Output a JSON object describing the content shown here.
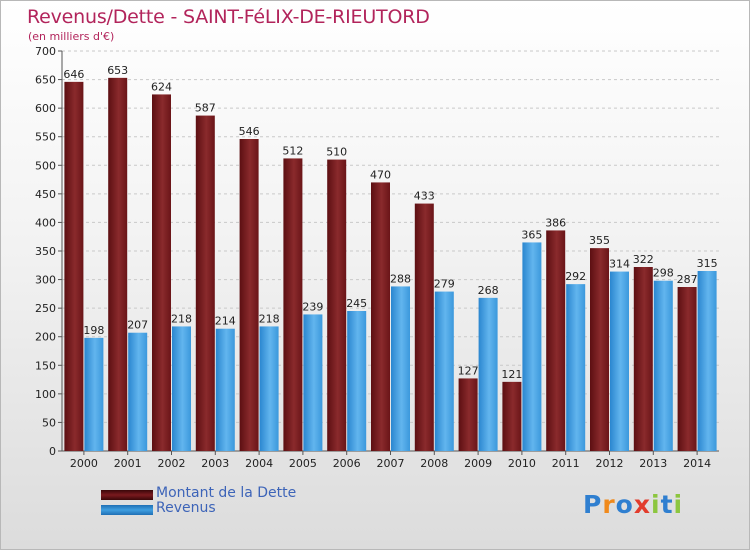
{
  "chart_data": {
    "type": "bar",
    "title": "Revenus/Dette - SAINT-FéLIX-DE-RIEUTORD",
    "subtitle": "(en milliers d'€)",
    "categories": [
      "2000",
      "2001",
      "2002",
      "2003",
      "2004",
      "2005",
      "2006",
      "2007",
      "2008",
      "2009",
      "2010",
      "2011",
      "2012",
      "2013",
      "2014"
    ],
    "series": [
      {
        "name": "Montant de la Dette",
        "color": "#7a1a1e",
        "values": [
          646,
          653,
          624,
          587,
          546,
          512,
          510,
          470,
          433,
          127,
          121,
          386,
          355,
          322,
          287
        ]
      },
      {
        "name": "Revenus",
        "color": "#3f9fe0",
        "values": [
          198,
          207,
          218,
          214,
          218,
          239,
          245,
          288,
          279,
          268,
          365,
          292,
          314,
          298,
          315
        ]
      }
    ],
    "ylim": [
      0,
      700
    ],
    "yticks": [
      0,
      50,
      100,
      150,
      200,
      250,
      300,
      350,
      400,
      450,
      500,
      550,
      600,
      650,
      700
    ],
    "grid": true,
    "legend_position": "bottom-left"
  },
  "logo": {
    "letters": [
      "P",
      "r",
      "o",
      "x",
      "i",
      "t",
      "i"
    ],
    "colors": [
      "#2f7fd0",
      "#f08a1c",
      "#2f7fd0",
      "#e23c2c",
      "#8cc63f",
      "#2f7fd0",
      "#8cc63f"
    ]
  }
}
